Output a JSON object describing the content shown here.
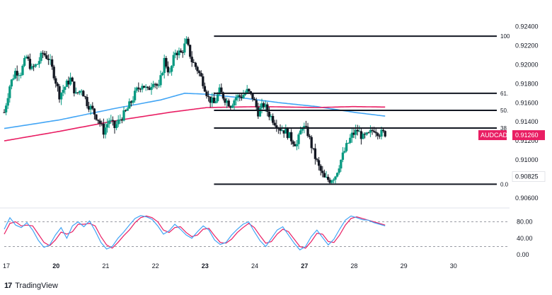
{
  "chart_data": [
    {
      "type": "candlestick",
      "symbol": "AUDCAD",
      "last_price_label": "0.91260",
      "price_label_2": "0.90825",
      "y_ticks": [
        "0.92400",
        "0.92200",
        "0.92000",
        "0.91800",
        "0.91600",
        "0.91400",
        "0.91200",
        "0.91000",
        "0.90800",
        "0.90600"
      ],
      "y_tick_values": [
        0.924,
        0.922,
        0.92,
        0.918,
        0.916,
        0.914,
        0.912,
        0.91,
        0.908,
        0.906
      ],
      "ylim": [
        0.9051,
        0.9262
      ],
      "x_ticks": [
        {
          "label": "17",
          "bold": false
        },
        {
          "label": "20",
          "bold": true
        },
        {
          "label": "21",
          "bold": false
        },
        {
          "label": "22",
          "bold": false
        },
        {
          "label": "23",
          "bold": true
        },
        {
          "label": "24",
          "bold": false
        },
        {
          "label": "27",
          "bold": true
        },
        {
          "label": "28",
          "bold": false
        },
        {
          "label": "29",
          "bold": false
        },
        {
          "label": "30",
          "bold": false
        }
      ],
      "close_path": [
        [
          0,
          0.915
        ],
        [
          3,
          0.9178
        ],
        [
          6,
          0.9193
        ],
        [
          9,
          0.9192
        ],
        [
          12,
          0.9208
        ],
        [
          15,
          0.9195
        ],
        [
          18,
          0.9201
        ],
        [
          21,
          0.9212
        ],
        [
          24,
          0.9207
        ],
        [
          27,
          0.919
        ],
        [
          30,
          0.9168
        ],
        [
          33,
          0.9177
        ],
        [
          36,
          0.9185
        ],
        [
          39,
          0.9168
        ],
        [
          42,
          0.9175
        ],
        [
          45,
          0.916
        ],
        [
          48,
          0.9152
        ],
        [
          51,
          0.9143
        ],
        [
          54,
          0.913
        ],
        [
          57,
          0.9142
        ],
        [
          60,
          0.9134
        ],
        [
          63,
          0.9143
        ],
        [
          66,
          0.915
        ],
        [
          69,
          0.9161
        ],
        [
          72,
          0.9173
        ],
        [
          75,
          0.918
        ],
        [
          78,
          0.9172
        ],
        [
          81,
          0.9184
        ],
        [
          84,
          0.9175
        ],
        [
          87,
          0.9205
        ],
        [
          90,
          0.919
        ],
        [
          93,
          0.9214
        ],
        [
          96,
          0.9212
        ],
        [
          99,
          0.9224
        ],
        [
          102,
          0.9204
        ],
        [
          105,
          0.9195
        ],
        [
          108,
          0.9182
        ],
        [
          111,
          0.9165
        ],
        [
          114,
          0.9159
        ],
        [
          117,
          0.9172
        ],
        [
          120,
          0.9164
        ],
        [
          123,
          0.9158
        ],
        [
          126,
          0.9166
        ],
        [
          129,
          0.9167
        ],
        [
          132,
          0.9172
        ],
        [
          135,
          0.9166
        ],
        [
          138,
          0.915
        ],
        [
          141,
          0.9158
        ],
        [
          144,
          0.9148
        ],
        [
          147,
          0.914
        ],
        [
          150,
          0.9133
        ],
        [
          153,
          0.913
        ],
        [
          156,
          0.9122
        ],
        [
          159,
          0.9116
        ],
        [
          162,
          0.9136
        ],
        [
          165,
          0.9128
        ],
        [
          168,
          0.9108
        ],
        [
          171,
          0.9092
        ],
        [
          174,
          0.908
        ],
        [
          177,
          0.9079
        ],
        [
          180,
          0.9084
        ],
        [
          183,
          0.91
        ],
        [
          186,
          0.9114
        ],
        [
          189,
          0.9126
        ],
        [
          192,
          0.9131
        ],
        [
          195,
          0.9123
        ],
        [
          198,
          0.9126
        ],
        [
          201,
          0.9133
        ],
        [
          204,
          0.9128
        ],
        [
          207,
          0.9128
        ]
      ],
      "ma_blue": [
        [
          0,
          0.9133
        ],
        [
          30,
          0.9142
        ],
        [
          60,
          0.9154
        ],
        [
          85,
          0.9163
        ],
        [
          98,
          0.917
        ],
        [
          110,
          0.9169
        ],
        [
          130,
          0.9165
        ],
        [
          150,
          0.916
        ],
        [
          170,
          0.9156
        ],
        [
          190,
          0.915
        ],
        [
          207,
          0.9146
        ]
      ],
      "ma_pink": [
        [
          0,
          0.912
        ],
        [
          30,
          0.913
        ],
        [
          60,
          0.9141
        ],
        [
          90,
          0.915
        ],
        [
          110,
          0.9155
        ],
        [
          140,
          0.9156
        ],
        [
          170,
          0.9155
        ],
        [
          190,
          0.9156
        ],
        [
          207,
          0.91555
        ]
      ],
      "fib_levels": [
        {
          "label": "100",
          "price": 0.923
        },
        {
          "label": "61.",
          "price": 0.917
        },
        {
          "label": "50.",
          "price": 0.9152
        },
        {
          "label": "38",
          "price": 0.91335
        },
        {
          "label": "0.0",
          "price": 0.90745
        }
      ],
      "fib_start_bar": 114,
      "bar_count": 208,
      "x_end_days": 15.5,
      "day_ticks_bars": [
        0,
        27,
        54,
        81,
        108,
        135,
        162,
        189,
        216,
        243
      ]
    },
    {
      "type": "line",
      "indicator": "stochastic",
      "ylim": [
        -10,
        110
      ],
      "y_ticks": [
        "80.00",
        "40.00",
        "0.00"
      ],
      "y_tick_values": [
        80,
        40,
        0
      ],
      "levels": [
        80,
        20
      ],
      "k_values": [
        62,
        90,
        72,
        66,
        78,
        60,
        35,
        18,
        24,
        48,
        66,
        40,
        70,
        80,
        68,
        82,
        58,
        30,
        14,
        20,
        40,
        55,
        72,
        88,
        95,
        92,
        86,
        70,
        50,
        58,
        74,
        62,
        48,
        40,
        56,
        70,
        60,
        36,
        25,
        30,
        48,
        62,
        74,
        80,
        56,
        34,
        20,
        40,
        60,
        68,
        48,
        28,
        12,
        20,
        44,
        60,
        42,
        24,
        38,
        62,
        84,
        94,
        90,
        85,
        84,
        78,
        74,
        70
      ],
      "d_values": [
        50,
        76,
        80,
        70,
        72,
        70,
        50,
        30,
        22,
        36,
        55,
        50,
        56,
        74,
        74,
        76,
        70,
        44,
        24,
        16,
        30,
        46,
        60,
        78,
        90,
        94,
        90,
        80,
        60,
        54,
        66,
        68,
        54,
        44,
        48,
        62,
        64,
        46,
        30,
        28,
        38,
        54,
        66,
        76,
        66,
        46,
        28,
        32,
        50,
        62,
        56,
        38,
        20,
        16,
        32,
        52,
        50,
        32,
        30,
        48,
        72,
        88,
        92,
        88,
        84,
        80,
        76,
        72
      ]
    }
  ],
  "brand": {
    "logo": "17",
    "name": "TradingView"
  },
  "colors": {
    "up": "#089981",
    "down": "#131722",
    "ma_blue": "#42a5f5",
    "ma_pink": "#e91e63",
    "stoch_k": "#42a5f5",
    "stoch_d": "#e91e63",
    "badge_bg": "#e91e63",
    "badge_text": "#ffffff",
    "badge2_bg": "#ffffff",
    "fib_line": "#131722",
    "grid_dash": "#787b86"
  }
}
